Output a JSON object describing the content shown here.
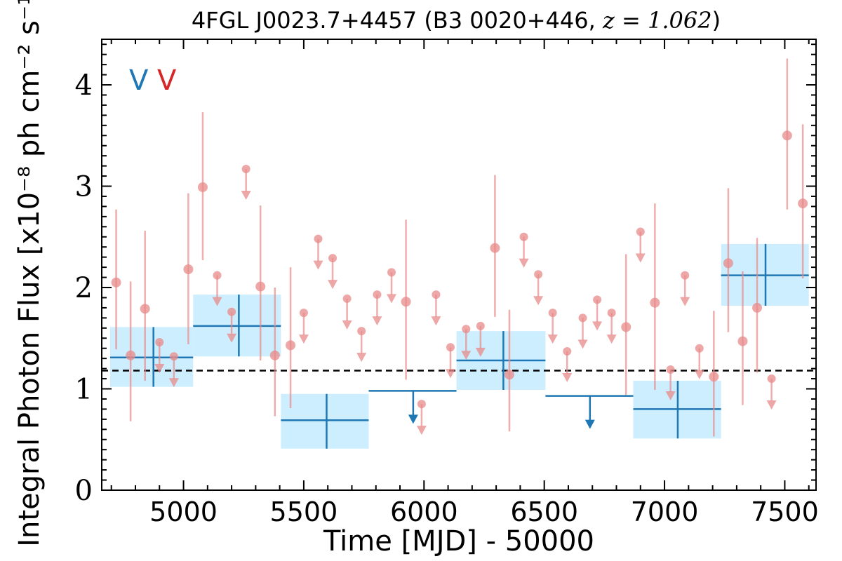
{
  "chart_data": {
    "type": "scatter",
    "title_main": "4FGL J0023.7+4457 (B3 0020+446, ",
    "title_z": "z = 1.062",
    "title_close": ")",
    "xlabel": "Time [MJD] - 50000",
    "ylabel": "Integral Photon Flux [x10⁻⁸ ph cm⁻² s⁻¹]",
    "xlim": [
      4660,
      7630
    ],
    "ylim": [
      0,
      4.45
    ],
    "x_ticks": [
      5000,
      5500,
      6000,
      6500,
      7000,
      7500
    ],
    "x_tick_labels": [
      "5000",
      "5500",
      "6000",
      "6500",
      "7000",
      "7500"
    ],
    "y_ticks": [
      0,
      1,
      2,
      3,
      4
    ],
    "y_tick_labels": [
      "0",
      "1",
      "2",
      "3",
      "4"
    ],
    "grid": false,
    "flags": [
      {
        "text": "V",
        "color": "#1f77b4"
      },
      {
        "text": "V",
        "color": "#d62728"
      }
    ],
    "mean_flux": 1.18,
    "colors": {
      "yearly": "#1f77b4",
      "yearly_box": "#cdeefe",
      "monthly": "#e88a8a",
      "mean_line": "#000000"
    },
    "yearly_series": {
      "name": "yearly bins",
      "detections": [
        {
          "x": 4875,
          "x_lo": 4695,
          "x_hi": 5040,
          "y": 1.31,
          "y_lo": 1.02,
          "y_hi": 1.61
        },
        {
          "x": 5230,
          "x_lo": 5040,
          "x_hi": 5405,
          "y": 1.62,
          "y_lo": 1.32,
          "y_hi": 1.93
        },
        {
          "x": 5595,
          "x_lo": 5405,
          "x_hi": 5770,
          "y": 0.69,
          "y_lo": 0.41,
          "y_hi": 0.95
        },
        {
          "x": 6330,
          "x_lo": 6135,
          "x_hi": 6505,
          "y": 1.28,
          "y_lo": 0.99,
          "y_hi": 1.57
        },
        {
          "x": 7055,
          "x_lo": 6870,
          "x_hi": 7235,
          "y": 0.8,
          "y_lo": 0.51,
          "y_hi": 1.08
        },
        {
          "x": 7420,
          "x_lo": 7235,
          "x_hi": 7600,
          "y": 2.12,
          "y_lo": 1.82,
          "y_hi": 2.43
        }
      ],
      "upper_limits": [
        {
          "x": 5955,
          "x_lo": 5770,
          "x_hi": 6135,
          "y": 0.98
        },
        {
          "x": 6690,
          "x_lo": 6505,
          "x_hi": 6870,
          "y": 0.93
        }
      ]
    },
    "monthly_series": {
      "name": "monthly bins",
      "detections": [
        {
          "x": 4720,
          "y": 2.05,
          "y_lo": 1.39,
          "y_hi": 2.77
        },
        {
          "x": 4780,
          "y": 1.33,
          "y_lo": 0.68,
          "y_hi": 2.06
        },
        {
          "x": 4840,
          "y": 1.79,
          "y_lo": 1.08,
          "y_hi": 2.56
        },
        {
          "x": 5020,
          "y": 2.18,
          "y_lo": 1.44,
          "y_hi": 2.93
        },
        {
          "x": 5080,
          "y": 2.99,
          "y_lo": 2.27,
          "y_hi": 3.73
        },
        {
          "x": 5320,
          "y": 2.01,
          "y_lo": 1.28,
          "y_hi": 2.81
        },
        {
          "x": 5380,
          "y": 1.33,
          "y_lo": 0.73,
          "y_hi": 2.0
        },
        {
          "x": 5445,
          "y": 1.43,
          "y_lo": 0.81,
          "y_hi": 2.2
        },
        {
          "x": 5925,
          "y": 1.86,
          "y_lo": 1.09,
          "y_hi": 2.67
        },
        {
          "x": 6295,
          "y": 2.39,
          "y_lo": 1.71,
          "y_hi": 3.11
        },
        {
          "x": 6355,
          "y": 1.14,
          "y_lo": 0.58,
          "y_hi": 1.78
        },
        {
          "x": 6840,
          "y": 1.61,
          "y_lo": 0.94,
          "y_hi": 2.33
        },
        {
          "x": 6960,
          "y": 1.85,
          "y_lo": 0.99,
          "y_hi": 2.83
        },
        {
          "x": 7205,
          "y": 1.12,
          "y_lo": 0.53,
          "y_hi": 1.77
        },
        {
          "x": 7265,
          "y": 2.24,
          "y_lo": 1.56,
          "y_hi": 2.98
        },
        {
          "x": 7325,
          "y": 1.47,
          "y_lo": 0.84,
          "y_hi": 2.16
        },
        {
          "x": 7385,
          "y": 1.8,
          "y_lo": 1.16,
          "y_hi": 2.49
        },
        {
          "x": 7510,
          "y": 3.5,
          "y_lo": 2.77,
          "y_hi": 4.26
        },
        {
          "x": 7575,
          "y": 2.83,
          "y_lo": 2.09,
          "y_hi": 3.61
        }
      ],
      "upper_limits": [
        {
          "x": 4900,
          "y": 1.46
        },
        {
          "x": 4960,
          "y": 1.32
        },
        {
          "x": 5140,
          "y": 2.12
        },
        {
          "x": 5200,
          "y": 1.76
        },
        {
          "x": 5260,
          "y": 3.17
        },
        {
          "x": 5500,
          "y": 1.75
        },
        {
          "x": 5560,
          "y": 2.48
        },
        {
          "x": 5620,
          "y": 2.29
        },
        {
          "x": 5680,
          "y": 1.89
        },
        {
          "x": 5740,
          "y": 1.57
        },
        {
          "x": 5805,
          "y": 1.93
        },
        {
          "x": 5865,
          "y": 2.15
        },
        {
          "x": 5990,
          "y": 0.85
        },
        {
          "x": 6050,
          "y": 1.93
        },
        {
          "x": 6110,
          "y": 1.41
        },
        {
          "x": 6175,
          "y": 1.59
        },
        {
          "x": 6235,
          "y": 1.62
        },
        {
          "x": 6415,
          "y": 2.5
        },
        {
          "x": 6475,
          "y": 2.13
        },
        {
          "x": 6535,
          "y": 1.75
        },
        {
          "x": 6595,
          "y": 1.37
        },
        {
          "x": 6660,
          "y": 1.7
        },
        {
          "x": 6720,
          "y": 1.88
        },
        {
          "x": 6780,
          "y": 1.75
        },
        {
          "x": 6900,
          "y": 2.55
        },
        {
          "x": 7025,
          "y": 1.19
        },
        {
          "x": 7085,
          "y": 2.12
        },
        {
          "x": 7145,
          "y": 1.4
        },
        {
          "x": 7445,
          "y": 1.1
        }
      ]
    }
  }
}
